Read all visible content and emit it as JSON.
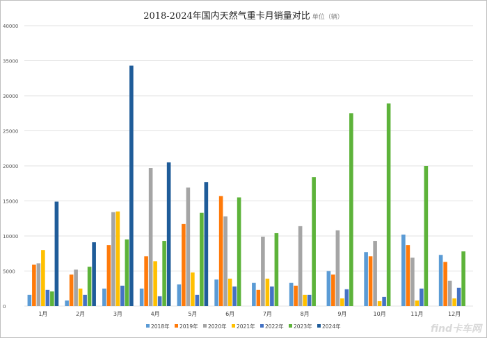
{
  "chart_data": {
    "type": "bar",
    "title": "2018-2024年国内天然气重卡月销量对比",
    "unit": "单位（辆）",
    "categories": [
      "1月",
      "2月",
      "3月",
      "4月",
      "5月",
      "6月",
      "7月",
      "8月",
      "9月",
      "10月",
      "11月",
      "12月"
    ],
    "ylim": [
      0,
      40000
    ],
    "yticks": [
      0,
      5000,
      10000,
      15000,
      20000,
      25000,
      30000,
      35000,
      40000
    ],
    "grid": true,
    "legend": "bottom",
    "series": [
      {
        "name": "2018年",
        "color": "#5B9BD5",
        "values": [
          1600,
          800,
          2500,
          2500,
          3100,
          3800,
          3300,
          3300,
          5000,
          7700,
          10200,
          7300
        ]
      },
      {
        "name": "2019年",
        "color": "#FF7A0A",
        "values": [
          5900,
          4500,
          8700,
          7100,
          11700,
          15700,
          2300,
          2900,
          4500,
          7100,
          8700,
          6300
        ]
      },
      {
        "name": "2020年",
        "color": "#A5A5A5",
        "values": [
          6100,
          5200,
          13400,
          19700,
          16900,
          12800,
          9900,
          11400,
          10800,
          9300,
          6900,
          3600
        ]
      },
      {
        "name": "2021年",
        "color": "#FFC000",
        "values": [
          8000,
          2500,
          13500,
          6400,
          4800,
          3900,
          3900,
          1600,
          1100,
          700,
          800,
          1100
        ]
      },
      {
        "name": "2022年",
        "color": "#4472C4",
        "values": [
          2300,
          1600,
          2900,
          1400,
          1600,
          2800,
          2800,
          1600,
          2400,
          1300,
          2500,
          2600
        ]
      },
      {
        "name": "2023年",
        "color": "#5DB33A",
        "values": [
          2100,
          5600,
          9500,
          9300,
          13300,
          15500,
          10400,
          18400,
          27500,
          28900,
          20000,
          7800
        ]
      },
      {
        "name": "2024年",
        "color": "#1F5C99",
        "values": [
          14900,
          9100,
          34300,
          20500,
          17700,
          null,
          null,
          null,
          null,
          null,
          null,
          null
        ]
      }
    ]
  },
  "watermark": "find卡车网"
}
